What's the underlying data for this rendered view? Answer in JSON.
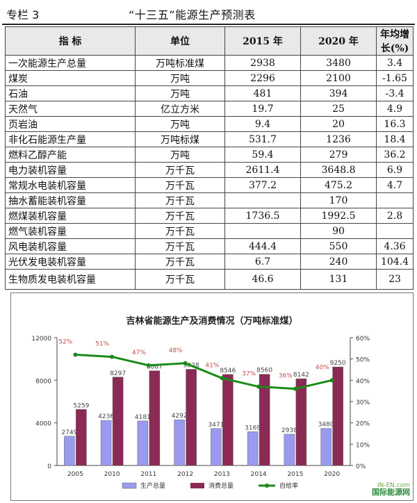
{
  "header": {
    "column": "专栏 3",
    "title": "“十三五”能源生产预测表"
  },
  "table": {
    "columns": [
      "指  标",
      "单位",
      "2015 年",
      "2020 年",
      "年均增长(%)"
    ],
    "rows": [
      [
        "一次能源生产总量",
        "万吨标准煤",
        "2938",
        "3480",
        "3.4"
      ],
      [
        "煤炭",
        "万吨",
        "2296",
        "2100",
        "-1.65"
      ],
      [
        "石油",
        "万吨",
        "481",
        "394",
        "-3.4"
      ],
      [
        "天然气",
        "亿立方米",
        "19.7",
        "25",
        "4.9"
      ],
      [
        "页岩油",
        "万吨",
        "9.4",
        "20",
        "16.3"
      ],
      [
        "非化石能源生产量",
        "万吨标煤",
        "531.7",
        "1236",
        "18.4"
      ],
      [
        "燃料乙醇产能",
        "万吨",
        "59.4",
        "279",
        "36.2"
      ],
      [
        "电力装机容量",
        "万千瓦",
        "2611.4",
        "3648.8",
        "6.9"
      ],
      [
        "常规水电装机容量",
        "万千瓦",
        "377.2",
        "475.2",
        "4.7"
      ],
      [
        "抽水蓄能装机容量",
        "万千瓦",
        "",
        "170",
        ""
      ],
      [
        "燃煤装机容量",
        "万千瓦",
        "1736.5",
        "1992.5",
        "2.8"
      ],
      [
        "燃气装机容量",
        "万千瓦",
        "",
        "90",
        ""
      ],
      [
        "风电装机容量",
        "万千瓦",
        "444.4",
        "550",
        "4.36"
      ],
      [
        "光伏发电装机容量",
        "万千瓦",
        "6.7",
        "240",
        "104.4"
      ],
      [
        "生物质发电装机容量",
        "万千瓦",
        "46.6",
        "131",
        "23"
      ]
    ]
  },
  "chart_data": {
    "type": "bar",
    "title": "吉林省能源生产及消费情况（万吨标准煤）",
    "categories": [
      "2005",
      "2010",
      "2011",
      "2012",
      "2013",
      "2014",
      "2015",
      "2020"
    ],
    "series": [
      {
        "name": "生产总量",
        "kind": "bar",
        "axis": "left",
        "color": "#9a9af0",
        "values": [
          2749,
          4236,
          4181,
          4292,
          3471,
          3169,
          2938,
          3480
        ]
      },
      {
        "name": "消费总量",
        "kind": "bar",
        "axis": "left",
        "color": "#8b2a55",
        "values": [
          5259,
          8297,
          8887,
          9028,
          8546,
          8560,
          8142,
          9250
        ]
      },
      {
        "name": "自给率",
        "kind": "line",
        "axis": "right",
        "color": "#1a8a1a",
        "values": [
          52,
          51,
          47,
          48,
          41,
          37,
          36,
          40
        ],
        "labels": [
          "52%",
          "51%",
          "47%",
          "48%",
          "41%",
          "37%",
          "36%",
          "40%"
        ]
      }
    ],
    "ylim_left": [
      0,
      12000
    ],
    "yticks_left": [
      "0",
      "4000",
      "8000",
      "12000"
    ],
    "ylim_right": [
      0,
      60
    ],
    "yticks_right": [
      "0%",
      "10%",
      "20%",
      "30%",
      "40%",
      "50%",
      "60%"
    ],
    "legend_position": "bottom",
    "grid": false
  },
  "watermark": {
    "text": "国际能源网",
    "sub": "IN-EN.com"
  }
}
